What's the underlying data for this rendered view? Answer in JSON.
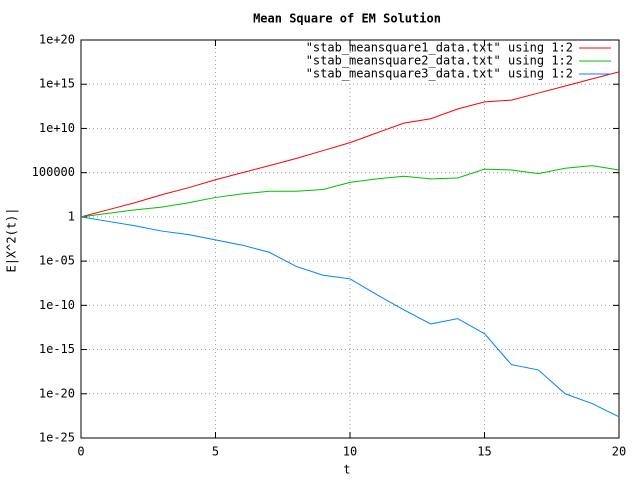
{
  "chart_data": {
    "type": "line",
    "title": "Mean Square of EM Solution",
    "x_label": "t",
    "y_label": "E|X^2(t)|",
    "x": [
      0,
      1,
      2,
      3,
      4,
      5,
      6,
      7,
      8,
      9,
      10,
      11,
      12,
      13,
      14,
      15,
      16,
      17,
      18,
      19,
      20
    ],
    "series": [
      {
        "name": "\"stab_meansquare1_data.txt\" using 1:2",
        "color": "#ff0000",
        "values": [
          1,
          6.3,
          40,
          316,
          2000,
          15800.0,
          100000.0,
          630000.0,
          4000000.0,
          31600000.0,
          250000000.0,
          3160000000.0,
          40000000000.0,
          126000000000.0,
          1580000000000.0,
          10000000000000.0,
          15800000000000.0,
          100000000000000.0,
          630000000000000.0,
          4000000000000000.0,
          2.5e+16
        ]
      },
      {
        "name": "\"stab_meansquare2_data.txt\" using 1:2",
        "color": "#00c000",
        "values": [
          1,
          2.5,
          6.3,
          12.6,
          40,
          158,
          400,
          794,
          794,
          1259,
          7943,
          20000.0,
          40000.0,
          20000.0,
          25000.0,
          250000.0,
          200000.0,
          79000.0,
          316000.0,
          630000.0,
          200000.0
        ]
      },
      {
        "name": "\"stab_meansquare3_data.txt\" using 1:2",
        "color": "#0080ff",
        "values": [
          1,
          0.316,
          0.1,
          0.025,
          0.01,
          0.0025,
          0.00063,
          0.0001,
          2.5e-06,
          2.5e-07,
          1e-07,
          1.58e-09,
          3.16e-11,
          7.9e-13,
          3.16e-12,
          6.3e-14,
          2e-17,
          5e-18,
          1e-20,
          7.9e-22,
          2.5e-23
        ]
      }
    ],
    "xlim": [
      0,
      20
    ],
    "xticks": [
      0,
      5,
      10,
      15,
      20
    ],
    "ylim": [
      1e-25,
      1e+20
    ],
    "log_y": true,
    "yticks": [
      {
        "value": 1e-25,
        "label": "1e-25"
      },
      {
        "value": 1e-20,
        "label": "1e-20"
      },
      {
        "value": 1e-15,
        "label": "1e-15"
      },
      {
        "value": 1e-10,
        "label": "1e-10"
      },
      {
        "value": 1e-05,
        "label": "1e-05"
      },
      1,
      100000,
      {
        "value": 10000000000.0,
        "label": "1e+10"
      },
      {
        "value": 1000000000000000.0,
        "label": "1e+15"
      },
      {
        "value": 1e+20,
        "label": "1e+20"
      }
    ],
    "grid": true,
    "legend_position": "top-right"
  }
}
